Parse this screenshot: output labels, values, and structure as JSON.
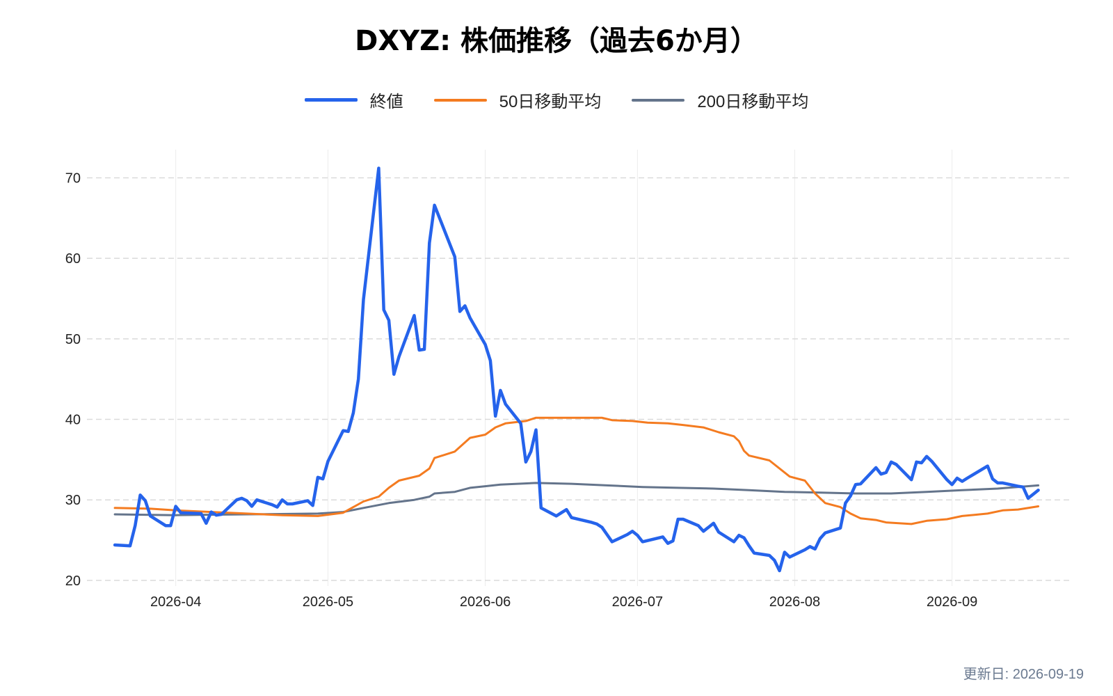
{
  "title": "DXYZ: 株価推移（過去6か月）",
  "updated": "更新日: 2026-09-19",
  "chart_data": {
    "type": "line",
    "title": "DXYZ: 株価推移（過去6か月）",
    "xlabel": "",
    "ylabel": "",
    "x_range": [
      "2026-03-20",
      "2026-09-19"
    ],
    "ylim": [
      19.3,
      73.5
    ],
    "yticks": [
      20,
      30,
      40,
      50,
      60,
      70
    ],
    "xticks": [
      "2026-04-01",
      "2026-05-01",
      "2026-06-01",
      "2026-07-01",
      "2026-08-01",
      "2026-09-01"
    ],
    "xtick_labels": [
      "2026-04",
      "2026-05",
      "2026-06",
      "2026-07",
      "2026-08",
      "2026-09"
    ],
    "grid": true,
    "legend_position": "top-center",
    "series": [
      {
        "name": "終値",
        "color": "#2563eb",
        "points": [
          [
            "2026-03-20",
            24.4
          ],
          [
            "2026-03-23",
            24.3
          ],
          [
            "2026-03-24",
            26.8
          ],
          [
            "2026-03-25",
            30.6
          ],
          [
            "2026-03-26",
            29.9
          ],
          [
            "2026-03-27",
            28.0
          ],
          [
            "2026-03-30",
            26.8
          ],
          [
            "2026-03-31",
            26.8
          ],
          [
            "2026-04-01",
            29.2
          ],
          [
            "2026-04-02",
            28.4
          ],
          [
            "2026-04-06",
            28.3
          ],
          [
            "2026-04-07",
            27.1
          ],
          [
            "2026-04-08",
            28.5
          ],
          [
            "2026-04-09",
            28.1
          ],
          [
            "2026-04-10",
            28.2
          ],
          [
            "2026-04-13",
            30.0
          ],
          [
            "2026-04-14",
            30.2
          ],
          [
            "2026-04-15",
            29.9
          ],
          [
            "2026-04-16",
            29.2
          ],
          [
            "2026-04-17",
            30.0
          ],
          [
            "2026-04-20",
            29.4
          ],
          [
            "2026-04-21",
            29.1
          ],
          [
            "2026-04-22",
            30.0
          ],
          [
            "2026-04-23",
            29.5
          ],
          [
            "2026-04-24",
            29.5
          ],
          [
            "2026-04-27",
            29.9
          ],
          [
            "2026-04-28",
            29.3
          ],
          [
            "2026-04-29",
            32.8
          ],
          [
            "2026-04-30",
            32.6
          ],
          [
            "2026-05-01",
            34.8
          ],
          [
            "2026-05-04",
            38.6
          ],
          [
            "2026-05-05",
            38.5
          ],
          [
            "2026-05-06",
            40.8
          ],
          [
            "2026-05-07",
            45.0
          ],
          [
            "2026-05-08",
            54.9
          ],
          [
            "2026-05-11",
            71.2
          ],
          [
            "2026-05-12",
            53.6
          ],
          [
            "2026-05-13",
            52.3
          ],
          [
            "2026-05-14",
            45.6
          ],
          [
            "2026-05-15",
            47.8
          ],
          [
            "2026-05-18",
            52.9
          ],
          [
            "2026-05-19",
            48.6
          ],
          [
            "2026-05-20",
            48.7
          ],
          [
            "2026-05-21",
            61.9
          ],
          [
            "2026-05-22",
            66.6
          ],
          [
            "2026-05-26",
            60.2
          ],
          [
            "2026-05-27",
            53.4
          ],
          [
            "2026-05-28",
            54.1
          ],
          [
            "2026-05-29",
            52.6
          ],
          [
            "2026-06-01",
            49.3
          ],
          [
            "2026-06-02",
            47.3
          ],
          [
            "2026-06-03",
            40.4
          ],
          [
            "2026-06-04",
            43.6
          ],
          [
            "2026-06-05",
            41.9
          ],
          [
            "2026-06-08",
            39.5
          ],
          [
            "2026-06-09",
            34.7
          ],
          [
            "2026-06-10",
            36.0
          ],
          [
            "2026-06-11",
            38.7
          ],
          [
            "2026-06-12",
            29.0
          ],
          [
            "2026-06-15",
            28.0
          ],
          [
            "2026-06-16",
            28.4
          ],
          [
            "2026-06-17",
            28.8
          ],
          [
            "2026-06-18",
            27.8
          ],
          [
            "2026-06-22",
            27.2
          ],
          [
            "2026-06-23",
            27.0
          ],
          [
            "2026-06-24",
            26.6
          ],
          [
            "2026-06-25",
            25.7
          ],
          [
            "2026-06-26",
            24.8
          ],
          [
            "2026-06-29",
            25.7
          ],
          [
            "2026-06-30",
            26.1
          ],
          [
            "2026-07-01",
            25.6
          ],
          [
            "2026-07-02",
            24.8
          ],
          [
            "2026-07-06",
            25.4
          ],
          [
            "2026-07-07",
            24.6
          ],
          [
            "2026-07-08",
            24.9
          ],
          [
            "2026-07-09",
            27.6
          ],
          [
            "2026-07-10",
            27.6
          ],
          [
            "2026-07-13",
            26.8
          ],
          [
            "2026-07-14",
            26.1
          ],
          [
            "2026-07-15",
            26.6
          ],
          [
            "2026-07-16",
            27.1
          ],
          [
            "2026-07-17",
            26.0
          ],
          [
            "2026-07-20",
            24.8
          ],
          [
            "2026-07-21",
            25.6
          ],
          [
            "2026-07-22",
            25.3
          ],
          [
            "2026-07-23",
            24.3
          ],
          [
            "2026-07-24",
            23.4
          ],
          [
            "2026-07-27",
            23.1
          ],
          [
            "2026-07-28",
            22.5
          ],
          [
            "2026-07-29",
            21.2
          ],
          [
            "2026-07-30",
            23.5
          ],
          [
            "2026-07-31",
            22.9
          ],
          [
            "2026-08-03",
            23.8
          ],
          [
            "2026-08-04",
            24.2
          ],
          [
            "2026-08-05",
            23.9
          ],
          [
            "2026-08-06",
            25.2
          ],
          [
            "2026-08-07",
            25.9
          ],
          [
            "2026-08-10",
            26.5
          ],
          [
            "2026-08-11",
            29.6
          ],
          [
            "2026-08-12",
            30.5
          ],
          [
            "2026-08-13",
            31.9
          ],
          [
            "2026-08-14",
            32.0
          ],
          [
            "2026-08-17",
            34.0
          ],
          [
            "2026-08-18",
            33.2
          ],
          [
            "2026-08-19",
            33.4
          ],
          [
            "2026-08-20",
            34.7
          ],
          [
            "2026-08-21",
            34.4
          ],
          [
            "2026-08-24",
            32.5
          ],
          [
            "2026-08-25",
            34.7
          ],
          [
            "2026-08-26",
            34.6
          ],
          [
            "2026-08-27",
            35.4
          ],
          [
            "2026-08-28",
            34.8
          ],
          [
            "2026-08-31",
            32.5
          ],
          [
            "2026-09-01",
            31.9
          ],
          [
            "2026-09-02",
            32.7
          ],
          [
            "2026-09-03",
            32.3
          ],
          [
            "2026-09-04",
            32.7
          ],
          [
            "2026-09-08",
            34.2
          ],
          [
            "2026-09-09",
            32.6
          ],
          [
            "2026-09-10",
            32.1
          ],
          [
            "2026-09-11",
            32.1
          ],
          [
            "2026-09-14",
            31.7
          ],
          [
            "2026-09-15",
            31.6
          ],
          [
            "2026-09-16",
            30.2
          ],
          [
            "2026-09-17",
            30.7
          ],
          [
            "2026-09-18",
            31.2
          ]
        ]
      },
      {
        "name": "50日移動平均",
        "color": "#f47b20",
        "points": [
          [
            "2026-03-20",
            29.0
          ],
          [
            "2026-03-27",
            28.9
          ],
          [
            "2026-04-01",
            28.7
          ],
          [
            "2026-04-08",
            28.5
          ],
          [
            "2026-04-15",
            28.3
          ],
          [
            "2026-04-22",
            28.1
          ],
          [
            "2026-04-29",
            28.0
          ],
          [
            "2026-05-04",
            28.4
          ],
          [
            "2026-05-08",
            29.8
          ],
          [
            "2026-05-11",
            30.4
          ],
          [
            "2026-05-13",
            31.5
          ],
          [
            "2026-05-15",
            32.4
          ],
          [
            "2026-05-19",
            33.0
          ],
          [
            "2026-05-21",
            33.9
          ],
          [
            "2026-05-22",
            35.2
          ],
          [
            "2026-05-26",
            36.0
          ],
          [
            "2026-05-29",
            37.7
          ],
          [
            "2026-06-01",
            38.1
          ],
          [
            "2026-06-03",
            39.0
          ],
          [
            "2026-06-05",
            39.5
          ],
          [
            "2026-06-09",
            39.8
          ],
          [
            "2026-06-11",
            40.2
          ],
          [
            "2026-06-17",
            40.2
          ],
          [
            "2026-06-24",
            40.2
          ],
          [
            "2026-06-26",
            39.9
          ],
          [
            "2026-06-30",
            39.8
          ],
          [
            "2026-07-03",
            39.6
          ],
          [
            "2026-07-07",
            39.5
          ],
          [
            "2026-07-10",
            39.3
          ],
          [
            "2026-07-14",
            39.0
          ],
          [
            "2026-07-17",
            38.4
          ],
          [
            "2026-07-20",
            37.9
          ],
          [
            "2026-07-21",
            37.3
          ],
          [
            "2026-07-22",
            36.1
          ],
          [
            "2026-07-23",
            35.5
          ],
          [
            "2026-07-27",
            34.9
          ],
          [
            "2026-07-31",
            32.9
          ],
          [
            "2026-08-03",
            32.4
          ],
          [
            "2026-08-05",
            30.8
          ],
          [
            "2026-08-07",
            29.6
          ],
          [
            "2026-08-10",
            29.1
          ],
          [
            "2026-08-12",
            28.3
          ],
          [
            "2026-08-14",
            27.7
          ],
          [
            "2026-08-17",
            27.5
          ],
          [
            "2026-08-19",
            27.2
          ],
          [
            "2026-08-24",
            27.0
          ],
          [
            "2026-08-27",
            27.4
          ],
          [
            "2026-08-31",
            27.6
          ],
          [
            "2026-09-03",
            28.0
          ],
          [
            "2026-09-08",
            28.3
          ],
          [
            "2026-09-11",
            28.7
          ],
          [
            "2026-09-14",
            28.8
          ],
          [
            "2026-09-18",
            29.2
          ]
        ]
      },
      {
        "name": "200日移動平均",
        "color": "#64748b",
        "points": [
          [
            "2026-03-20",
            28.2
          ],
          [
            "2026-04-01",
            28.1
          ],
          [
            "2026-04-15",
            28.2
          ],
          [
            "2026-04-29",
            28.3
          ],
          [
            "2026-05-04",
            28.5
          ],
          [
            "2026-05-08",
            29.0
          ],
          [
            "2026-05-13",
            29.6
          ],
          [
            "2026-05-18",
            30.0
          ],
          [
            "2026-05-21",
            30.4
          ],
          [
            "2026-05-22",
            30.8
          ],
          [
            "2026-05-26",
            31.0
          ],
          [
            "2026-05-29",
            31.5
          ],
          [
            "2026-06-01",
            31.7
          ],
          [
            "2026-06-04",
            31.9
          ],
          [
            "2026-06-11",
            32.1
          ],
          [
            "2026-06-18",
            32.0
          ],
          [
            "2026-06-25",
            31.8
          ],
          [
            "2026-07-02",
            31.6
          ],
          [
            "2026-07-09",
            31.5
          ],
          [
            "2026-07-16",
            31.4
          ],
          [
            "2026-07-23",
            31.2
          ],
          [
            "2026-07-30",
            31.0
          ],
          [
            "2026-08-06",
            30.9
          ],
          [
            "2026-08-13",
            30.8
          ],
          [
            "2026-08-20",
            30.8
          ],
          [
            "2026-08-27",
            31.0
          ],
          [
            "2026-09-03",
            31.2
          ],
          [
            "2026-09-10",
            31.4
          ],
          [
            "2026-09-18",
            31.8
          ]
        ]
      }
    ]
  }
}
